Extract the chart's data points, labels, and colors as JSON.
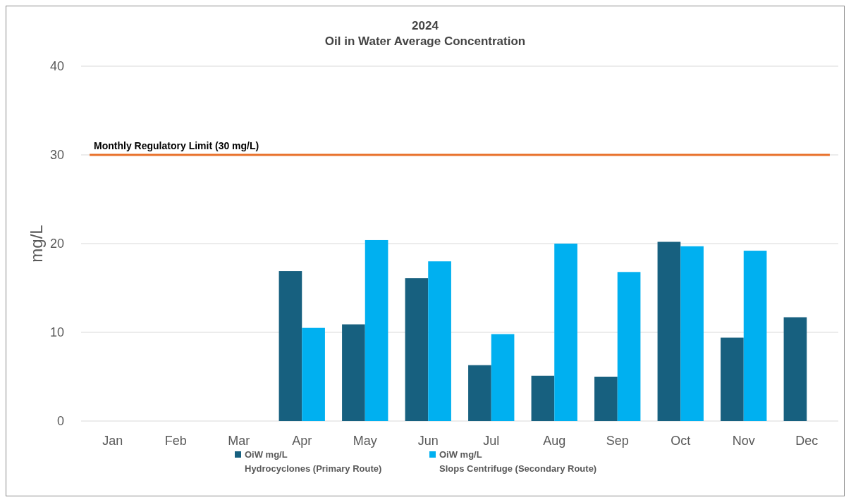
{
  "chart_data": {
    "type": "bar",
    "title": "2024",
    "subtitle": "Oil in Water Average Concentration",
    "ylabel": "mg/L",
    "categories": [
      "Jan",
      "Feb",
      "Mar",
      "Apr",
      "May",
      "Jun",
      "Jul",
      "Aug",
      "Sep",
      "Oct",
      "Nov",
      "Dec"
    ],
    "series": [
      {
        "name": "OiW mg/L\nHydrocyclones (Primary Route)",
        "color": "#17607f",
        "values": [
          null,
          null,
          null,
          16.9,
          10.9,
          16.1,
          6.3,
          5.1,
          5.0,
          20.2,
          9.4,
          11.7
        ]
      },
      {
        "name": "OiW mg/L\nSlops Centrifuge (Secondary Route)",
        "color": "#00b0f0",
        "values": [
          null,
          null,
          null,
          10.5,
          20.4,
          18.0,
          9.8,
          20.0,
          16.8,
          19.7,
          19.2,
          null
        ]
      }
    ],
    "ylim": [
      0,
      40
    ],
    "yticks": [
      0,
      10,
      20,
      30,
      40
    ],
    "grid": "y",
    "legend": "bottom",
    "ref_lines": [
      {
        "axis": "y",
        "value": 30,
        "label": "Monthly Regulatory Limit (30 mg/L)",
        "color": "#e8702a"
      }
    ]
  }
}
